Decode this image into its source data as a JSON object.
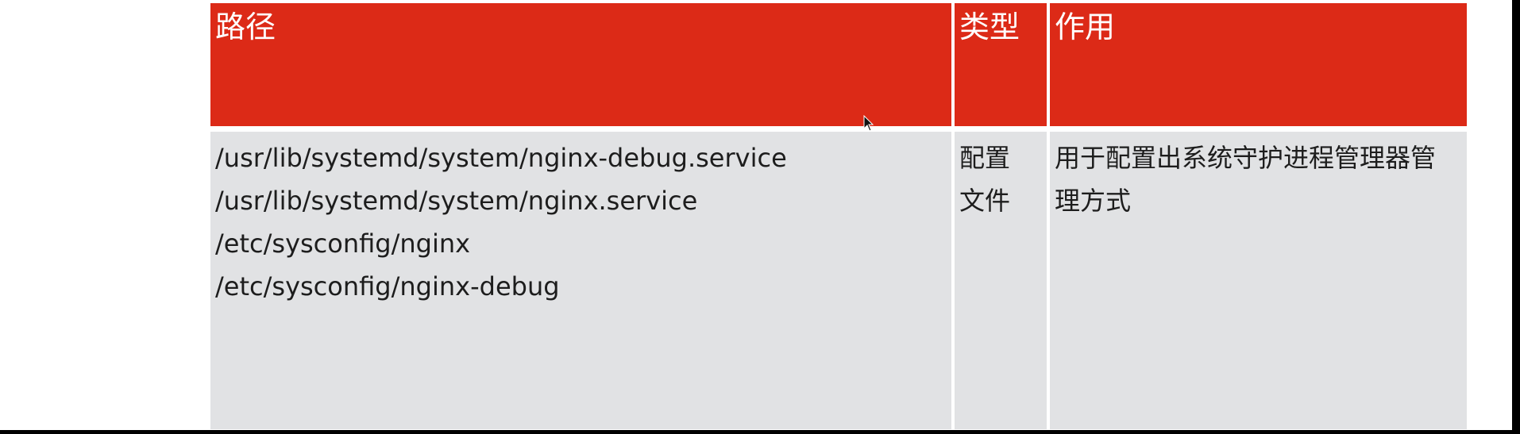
{
  "table": {
    "headers": {
      "path": "路径",
      "type": "类型",
      "use": "作用"
    },
    "row": {
      "paths": [
        "/usr/lib/systemd/system/nginx-debug.service",
        "/usr/lib/systemd/system/nginx.service",
        "/etc/sysconfig/nginx",
        "/etc/sysconfig/nginx-debug"
      ],
      "type": "配置文件",
      "use": "用于配置出系统守护进程管理器管理方式"
    }
  },
  "colors": {
    "header_bg": "#dc2a17",
    "body_bg": "#e1e2e4",
    "header_text": "#ffffff",
    "body_text": "#1d1d1d"
  },
  "icons": {
    "cursor": "mouse-pointer-icon"
  }
}
